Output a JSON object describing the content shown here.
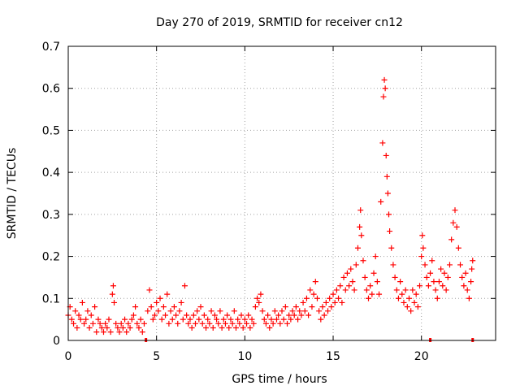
{
  "chart_data": {
    "type": "scatter",
    "title": "Day 270 of 2019, SRMTID for receiver cn12",
    "xlabel": "GPS time / hours",
    "ylabel": "SRMTID / TECUs",
    "xlim": [
      0,
      24.2
    ],
    "ylim": [
      0,
      0.7
    ],
    "xticks": [
      0,
      5,
      10,
      15,
      20
    ],
    "yticks": [
      0,
      0.1,
      0.2,
      0.3,
      0.4,
      0.5,
      0.6,
      0.7
    ],
    "xtick_labels": [
      "0",
      "5",
      "10",
      "15",
      "20"
    ],
    "ytick_labels": [
      "0",
      "0.1",
      "0.2",
      "0.3",
      "0.4",
      "0.5",
      "0.6",
      "0.7"
    ],
    "grid": true,
    "marker": "plus",
    "color": "#ff0000",
    "series": [
      {
        "name": "SRMTID",
        "points": [
          [
            0.0,
            0.06
          ],
          [
            0.1,
            0.08
          ],
          [
            0.2,
            0.05
          ],
          [
            0.3,
            0.04
          ],
          [
            0.4,
            0.07
          ],
          [
            0.5,
            0.03
          ],
          [
            0.6,
            0.06
          ],
          [
            0.7,
            0.05
          ],
          [
            0.8,
            0.09
          ],
          [
            0.9,
            0.04
          ],
          [
            1.0,
            0.05
          ],
          [
            1.1,
            0.07
          ],
          [
            1.2,
            0.03
          ],
          [
            1.3,
            0.06
          ],
          [
            1.4,
            0.04
          ],
          [
            1.5,
            0.08
          ],
          [
            1.6,
            0.02
          ],
          [
            1.7,
            0.05
          ],
          [
            1.8,
            0.04
          ],
          [
            1.9,
            0.03
          ],
          [
            2.0,
            0.02
          ],
          [
            2.1,
            0.04
          ],
          [
            2.2,
            0.03
          ],
          [
            2.3,
            0.05
          ],
          [
            2.4,
            0.02
          ],
          [
            2.5,
            0.11
          ],
          [
            2.55,
            0.13
          ],
          [
            2.6,
            0.09
          ],
          [
            2.7,
            0.04
          ],
          [
            2.8,
            0.03
          ],
          [
            2.9,
            0.02
          ],
          [
            3.0,
            0.04
          ],
          [
            3.1,
            0.03
          ],
          [
            3.2,
            0.05
          ],
          [
            3.3,
            0.02
          ],
          [
            3.4,
            0.04
          ],
          [
            3.5,
            0.03
          ],
          [
            3.6,
            0.05
          ],
          [
            3.7,
            0.06
          ],
          [
            3.8,
            0.08
          ],
          [
            3.9,
            0.04
          ],
          [
            4.0,
            0.03
          ],
          [
            4.1,
            0.05
          ],
          [
            4.2,
            0.02
          ],
          [
            4.3,
            0.04
          ],
          [
            4.5,
            0.07
          ],
          [
            4.6,
            0.12
          ],
          [
            4.7,
            0.08
          ],
          [
            4.8,
            0.05
          ],
          [
            4.9,
            0.06
          ],
          [
            5.0,
            0.09
          ],
          [
            5.1,
            0.07
          ],
          [
            5.2,
            0.1
          ],
          [
            5.3,
            0.05
          ],
          [
            5.4,
            0.08
          ],
          [
            5.5,
            0.06
          ],
          [
            5.6,
            0.11
          ],
          [
            5.7,
            0.04
          ],
          [
            5.8,
            0.07
          ],
          [
            5.9,
            0.05
          ],
          [
            6.0,
            0.08
          ],
          [
            6.1,
            0.06
          ],
          [
            6.2,
            0.04
          ],
          [
            6.3,
            0.07
          ],
          [
            6.4,
            0.09
          ],
          [
            6.5,
            0.05
          ],
          [
            6.6,
            0.13
          ],
          [
            6.7,
            0.06
          ],
          [
            6.8,
            0.04
          ],
          [
            6.9,
            0.05
          ],
          [
            7.0,
            0.03
          ],
          [
            7.1,
            0.06
          ],
          [
            7.2,
            0.04
          ],
          [
            7.3,
            0.07
          ],
          [
            7.4,
            0.05
          ],
          [
            7.5,
            0.08
          ],
          [
            7.6,
            0.04
          ],
          [
            7.7,
            0.06
          ],
          [
            7.8,
            0.03
          ],
          [
            7.9,
            0.05
          ],
          [
            8.0,
            0.04
          ],
          [
            8.1,
            0.07
          ],
          [
            8.2,
            0.03
          ],
          [
            8.3,
            0.06
          ],
          [
            8.4,
            0.05
          ],
          [
            8.5,
            0.04
          ],
          [
            8.6,
            0.07
          ],
          [
            8.7,
            0.03
          ],
          [
            8.8,
            0.05
          ],
          [
            8.9,
            0.04
          ],
          [
            9.0,
            0.06
          ],
          [
            9.1,
            0.03
          ],
          [
            9.2,
            0.05
          ],
          [
            9.3,
            0.04
          ],
          [
            9.4,
            0.07
          ],
          [
            9.5,
            0.03
          ],
          [
            9.6,
            0.05
          ],
          [
            9.7,
            0.04
          ],
          [
            9.8,
            0.06
          ],
          [
            9.9,
            0.03
          ],
          [
            10.0,
            0.05
          ],
          [
            10.1,
            0.04
          ],
          [
            10.2,
            0.06
          ],
          [
            10.3,
            0.03
          ],
          [
            10.4,
            0.05
          ],
          [
            10.5,
            0.04
          ],
          [
            10.6,
            0.08
          ],
          [
            10.7,
            0.1
          ],
          [
            10.8,
            0.09
          ],
          [
            10.9,
            0.11
          ],
          [
            11.0,
            0.07
          ],
          [
            11.1,
            0.05
          ],
          [
            11.2,
            0.04
          ],
          [
            11.3,
            0.06
          ],
          [
            11.4,
            0.03
          ],
          [
            11.5,
            0.05
          ],
          [
            11.6,
            0.04
          ],
          [
            11.7,
            0.07
          ],
          [
            11.8,
            0.05
          ],
          [
            11.9,
            0.06
          ],
          [
            12.0,
            0.04
          ],
          [
            12.1,
            0.07
          ],
          [
            12.2,
            0.05
          ],
          [
            12.3,
            0.08
          ],
          [
            12.4,
            0.04
          ],
          [
            12.5,
            0.06
          ],
          [
            12.6,
            0.05
          ],
          [
            12.7,
            0.07
          ],
          [
            12.8,
            0.06
          ],
          [
            12.9,
            0.08
          ],
          [
            13.0,
            0.05
          ],
          [
            13.1,
            0.07
          ],
          [
            13.2,
            0.06
          ],
          [
            13.3,
            0.09
          ],
          [
            13.4,
            0.07
          ],
          [
            13.5,
            0.1
          ],
          [
            13.6,
            0.06
          ],
          [
            13.7,
            0.12
          ],
          [
            13.8,
            0.08
          ],
          [
            13.9,
            0.11
          ],
          [
            14.0,
            0.14
          ],
          [
            14.1,
            0.1
          ],
          [
            14.2,
            0.07
          ],
          [
            14.3,
            0.05
          ],
          [
            14.4,
            0.08
          ],
          [
            14.5,
            0.06
          ],
          [
            14.6,
            0.09
          ],
          [
            14.7,
            0.07
          ],
          [
            14.8,
            0.1
          ],
          [
            14.9,
            0.08
          ],
          [
            15.0,
            0.11
          ],
          [
            15.1,
            0.09
          ],
          [
            15.2,
            0.12
          ],
          [
            15.3,
            0.1
          ],
          [
            15.4,
            0.13
          ],
          [
            15.5,
            0.09
          ],
          [
            15.6,
            0.15
          ],
          [
            15.7,
            0.12
          ],
          [
            15.8,
            0.16
          ],
          [
            15.9,
            0.13
          ],
          [
            16.0,
            0.17
          ],
          [
            16.1,
            0.14
          ],
          [
            16.2,
            0.12
          ],
          [
            16.3,
            0.18
          ],
          [
            16.4,
            0.22
          ],
          [
            16.5,
            0.27
          ],
          [
            16.55,
            0.31
          ],
          [
            16.6,
            0.25
          ],
          [
            16.7,
            0.19
          ],
          [
            16.8,
            0.15
          ],
          [
            16.9,
            0.12
          ],
          [
            17.0,
            0.1
          ],
          [
            17.1,
            0.13
          ],
          [
            17.2,
            0.11
          ],
          [
            17.3,
            0.16
          ],
          [
            17.4,
            0.2
          ],
          [
            17.5,
            0.14
          ],
          [
            17.6,
            0.11
          ],
          [
            17.7,
            0.33
          ],
          [
            17.8,
            0.47
          ],
          [
            17.85,
            0.58
          ],
          [
            17.9,
            0.62
          ],
          [
            17.95,
            0.6
          ],
          [
            18.0,
            0.44
          ],
          [
            18.05,
            0.39
          ],
          [
            18.1,
            0.35
          ],
          [
            18.15,
            0.3
          ],
          [
            18.2,
            0.26
          ],
          [
            18.3,
            0.22
          ],
          [
            18.4,
            0.18
          ],
          [
            18.5,
            0.15
          ],
          [
            18.6,
            0.12
          ],
          [
            18.7,
            0.1
          ],
          [
            18.8,
            0.14
          ],
          [
            18.9,
            0.11
          ],
          [
            19.0,
            0.09
          ],
          [
            19.1,
            0.12
          ],
          [
            19.2,
            0.08
          ],
          [
            19.3,
            0.1
          ],
          [
            19.4,
            0.07
          ],
          [
            19.5,
            0.12
          ],
          [
            19.6,
            0.09
          ],
          [
            19.7,
            0.11
          ],
          [
            19.8,
            0.08
          ],
          [
            19.9,
            0.13
          ],
          [
            20.0,
            0.2
          ],
          [
            20.05,
            0.25
          ],
          [
            20.1,
            0.22
          ],
          [
            20.2,
            0.18
          ],
          [
            20.3,
            0.15
          ],
          [
            20.4,
            0.13
          ],
          [
            20.5,
            0.16
          ],
          [
            20.6,
            0.19
          ],
          [
            20.7,
            0.14
          ],
          [
            20.8,
            0.12
          ],
          [
            20.9,
            0.1
          ],
          [
            21.0,
            0.14
          ],
          [
            21.1,
            0.17
          ],
          [
            21.2,
            0.13
          ],
          [
            21.3,
            0.16
          ],
          [
            21.4,
            0.12
          ],
          [
            21.5,
            0.15
          ],
          [
            21.6,
            0.18
          ],
          [
            21.7,
            0.24
          ],
          [
            21.8,
            0.28
          ],
          [
            21.9,
            0.31
          ],
          [
            22.0,
            0.27
          ],
          [
            22.1,
            0.22
          ],
          [
            22.2,
            0.18
          ],
          [
            22.3,
            0.15
          ],
          [
            22.4,
            0.13
          ],
          [
            22.5,
            0.16
          ],
          [
            22.6,
            0.12
          ],
          [
            22.7,
            0.1
          ],
          [
            22.8,
            0.14
          ],
          [
            22.85,
            0.17
          ],
          [
            22.9,
            0.19
          ]
        ]
      }
    ],
    "gap_markers_x": [
      4.4,
      20.5,
      22.9
    ]
  }
}
